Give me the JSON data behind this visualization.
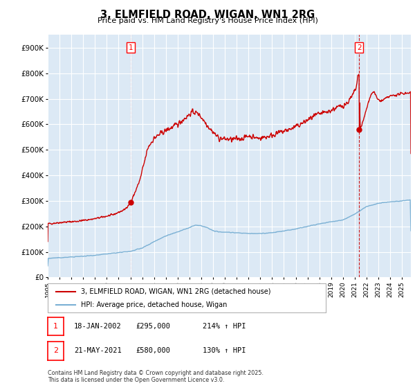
{
  "title": "3, ELMFIELD ROAD, WIGAN, WN1 2RG",
  "subtitle": "Price paid vs. HM Land Registry's House Price Index (HPI)",
  "background_color": "#dce9f5",
  "fig_bg_color": "#ffffff",
  "red_line_color": "#cc0000",
  "blue_line_color": "#7ab0d4",
  "dashed_line_color": "#cc0000",
  "ylim": [
    0,
    950000
  ],
  "yticks": [
    0,
    100000,
    200000,
    300000,
    400000,
    500000,
    600000,
    700000,
    800000,
    900000
  ],
  "point1": {
    "date_num": 2002.05,
    "value": 295000,
    "label": "1",
    "date_str": "18-JAN-2002",
    "price": "£295,000",
    "hpi": "214% ↑ HPI"
  },
  "point2": {
    "date_num": 2021.38,
    "value": 580000,
    "label": "2",
    "date_str": "21-MAY-2021",
    "price": "£580,000",
    "hpi": "130% ↑ HPI"
  },
  "legend_entries": [
    "3, ELMFIELD ROAD, WIGAN, WN1 2RG (detached house)",
    "HPI: Average price, detached house, Wigan"
  ],
  "footnote": "Contains HM Land Registry data © Crown copyright and database right 2025.\nThis data is licensed under the Open Government Licence v3.0.",
  "xmin": 1995.0,
  "xmax": 2025.75
}
